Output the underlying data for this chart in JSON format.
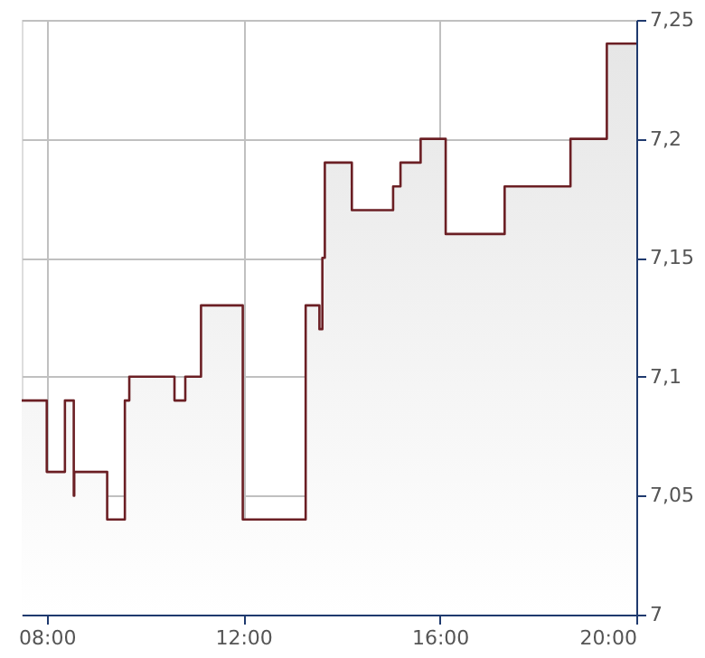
{
  "chart_data": {
    "type": "area",
    "xlim": [
      7.49,
      20
    ],
    "ylim": [
      7,
      7.25
    ],
    "xticks": [
      {
        "value": 8,
        "label": "08:00"
      },
      {
        "value": 12,
        "label": "12:00"
      },
      {
        "value": 16,
        "label": "16:00"
      },
      {
        "value": 20,
        "label": "20:00"
      }
    ],
    "yticks": [
      {
        "value": 7,
        "label": "7"
      },
      {
        "value": 7.05,
        "label": "7,05"
      },
      {
        "value": 7.1,
        "label": "7,1"
      },
      {
        "value": 7.15,
        "label": "7,15"
      },
      {
        "value": 7.2,
        "label": "7,2"
      },
      {
        "value": 7.25,
        "label": "7,25"
      }
    ],
    "grid": true,
    "marker": "none",
    "line_style": "solid",
    "series": [
      {
        "color": "#6b1f24",
        "x": [
          7.49,
          8.0,
          8.0,
          8.37,
          8.37,
          8.55,
          8.55,
          8.56,
          8.56,
          9.23,
          9.23,
          9.59,
          9.59,
          9.68,
          9.68,
          10.6,
          10.6,
          10.82,
          10.82,
          11.14,
          11.14,
          11.99,
          11.99,
          13.27,
          13.27,
          13.55,
          13.55,
          13.61,
          13.61,
          13.66,
          13.66,
          14.21,
          14.21,
          15.05,
          15.05,
          15.2,
          15.2,
          15.61,
          15.61,
          16.12,
          16.12,
          17.32,
          17.32,
          18.66,
          18.66,
          19.4,
          19.4,
          20.0
        ],
        "values": [
          7.09,
          7.09,
          7.06,
          7.06,
          7.09,
          7.09,
          7.05,
          7.05,
          7.06,
          7.06,
          7.04,
          7.04,
          7.09,
          7.09,
          7.1,
          7.1,
          7.09,
          7.09,
          7.1,
          7.1,
          7.13,
          7.13,
          7.04,
          7.04,
          7.13,
          7.13,
          7.12,
          7.12,
          7.15,
          7.15,
          7.19,
          7.19,
          7.17,
          7.17,
          7.18,
          7.18,
          7.19,
          7.19,
          7.2,
          7.2,
          7.16,
          7.16,
          7.18,
          7.18,
          7.2,
          7.2,
          7.24,
          7.24
        ]
      }
    ]
  }
}
